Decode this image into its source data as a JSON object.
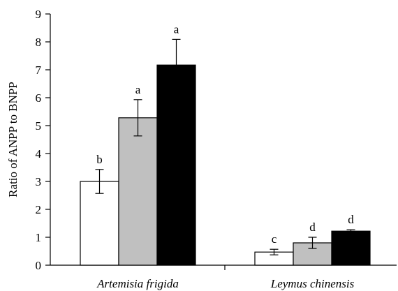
{
  "chart_data": {
    "type": "bar",
    "title": "",
    "xlabel": "",
    "ylabel": "Ratio of ANPP to BNPP",
    "ylim": [
      0,
      9
    ],
    "yticks": [
      0,
      1,
      2,
      3,
      4,
      5,
      6,
      7,
      8,
      9
    ],
    "categories": [
      "Artemisia frigida",
      "Leymus chinensis"
    ],
    "grid": false,
    "legend": "none",
    "series": [
      {
        "color": "#ffffff",
        "values": [
          3.0,
          0.47
        ],
        "errors": [
          0.43,
          0.1
        ],
        "labels": [
          "b",
          "c"
        ]
      },
      {
        "color": "#c0c0c0",
        "values": [
          5.28,
          0.8
        ],
        "errors": [
          0.65,
          0.2
        ],
        "labels": [
          "a",
          "d"
        ]
      },
      {
        "color": "#000000",
        "values": [
          7.17,
          1.22
        ],
        "errors": [
          0.92,
          0.05
        ],
        "labels": [
          "a",
          "d"
        ]
      }
    ]
  }
}
